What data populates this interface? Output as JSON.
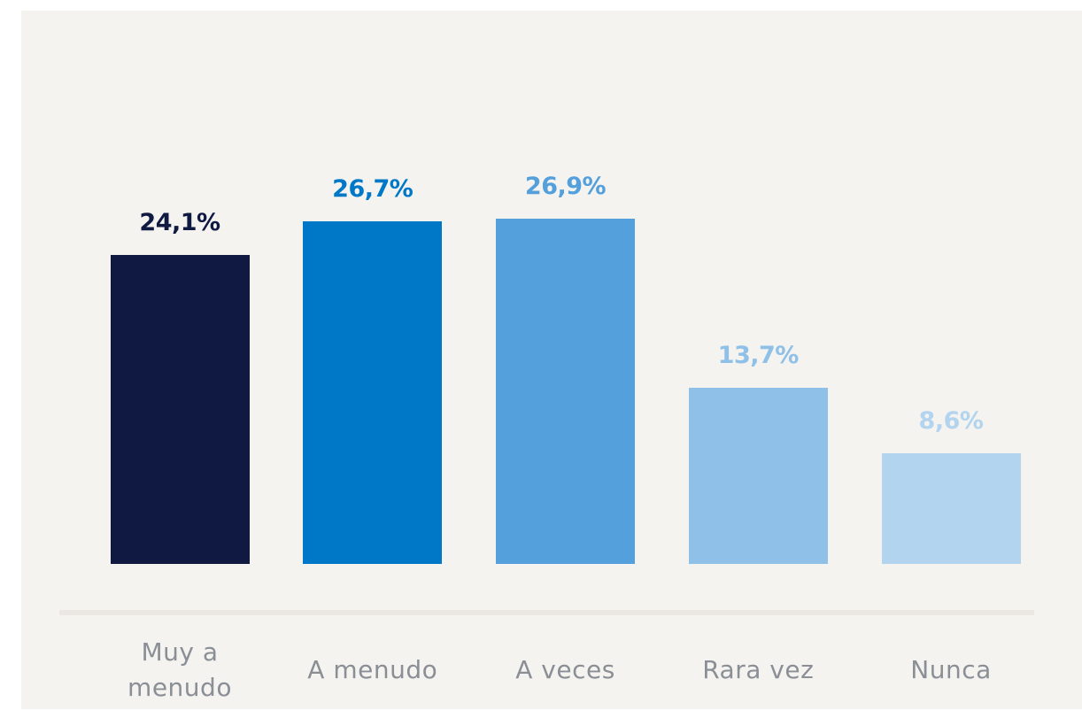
{
  "chart_data": {
    "type": "bar",
    "categories": [
      "Muy a menudo",
      "A menudo",
      "A veces",
      "Rara vez",
      "Nunca"
    ],
    "values": [
      24.1,
      26.7,
      26.9,
      13.7,
      8.6
    ],
    "value_labels": [
      "24,1%",
      "26,7%",
      "26,9%",
      "13,7%",
      "8,6%"
    ],
    "colors": [
      "#0f1941",
      "#0078c8",
      "#53a0dc",
      "#8ec0e8",
      "#b3d4ef"
    ]
  }
}
